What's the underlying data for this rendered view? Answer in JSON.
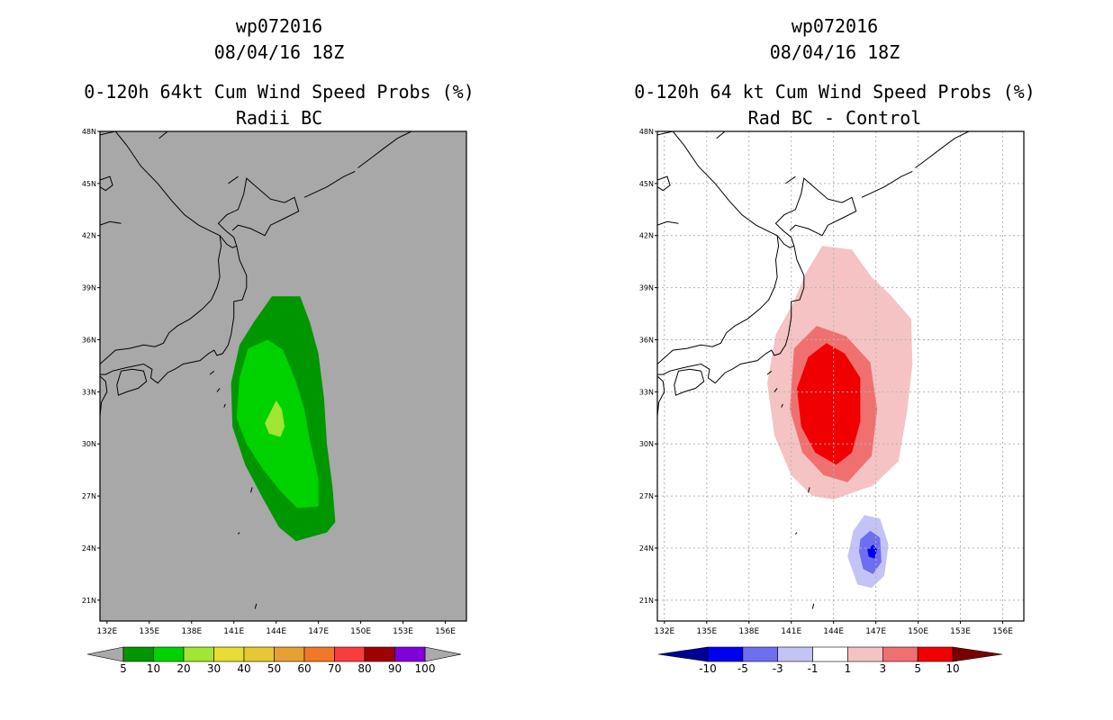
{
  "chart_data": [
    {
      "type": "map-contour",
      "storm_id": "wp072016",
      "date": "08/04/16 18Z",
      "title": "0-120h 64kt Cum Wind Speed Probs (%)",
      "subtitle": "Radii BC",
      "background_color": "#a8a8a8",
      "lat_ticks": [
        "48N",
        "45N",
        "42N",
        "39N",
        "36N",
        "33N",
        "30N",
        "27N",
        "24N",
        "21N"
      ],
      "lat_values": [
        48,
        45,
        42,
        39,
        36,
        33,
        30,
        27,
        24,
        21
      ],
      "lon_ticks": [
        "132E",
        "135E",
        "138E",
        "141E",
        "144E",
        "147E",
        "150E",
        "153E",
        "156E"
      ],
      "lon_values": [
        132,
        135,
        138,
        141,
        144,
        147,
        150,
        153,
        156
      ],
      "xlim": [
        131.5,
        157.5
      ],
      "ylim": [
        19.8,
        48
      ],
      "colorbar": {
        "labels": [
          "5",
          "10",
          "20",
          "30",
          "40",
          "50",
          "60",
          "70",
          "80",
          "90",
          "100"
        ],
        "colors": [
          "#009600",
          "#00d200",
          "#a0e632",
          "#e6dc32",
          "#e6c832",
          "#e6a032",
          "#f07828",
          "#fa3c3c",
          "#a00000",
          "#8200dc"
        ],
        "end_low": "#aaaaaa",
        "end_high": "#aaaaaa"
      },
      "contours": [
        {
          "level": 5,
          "color": "#009600",
          "points": [
            [
              142.4,
              37.0
            ],
            [
              143.7,
              38.5
            ],
            [
              145.7,
              38.5
            ],
            [
              146.4,
              37.0
            ],
            [
              147.0,
              35.2
            ],
            [
              147.4,
              32.6
            ],
            [
              147.6,
              30.0
            ],
            [
              148.0,
              27.5
            ],
            [
              148.2,
              25.5
            ],
            [
              147.6,
              24.9
            ],
            [
              145.4,
              24.4
            ],
            [
              144.2,
              25.2
            ],
            [
              143.1,
              26.8
            ],
            [
              141.8,
              28.8
            ],
            [
              140.9,
              31.0
            ],
            [
              140.8,
              33.5
            ],
            [
              141.4,
              35.7
            ]
          ]
        },
        {
          "level": 10,
          "color": "#00d200",
          "points": [
            [
              142.0,
              35.5
            ],
            [
              143.4,
              36.0
            ],
            [
              144.5,
              35.4
            ],
            [
              145.4,
              33.6
            ],
            [
              146.0,
              32.0
            ],
            [
              146.4,
              30.2
            ],
            [
              147.0,
              28.0
            ],
            [
              147.0,
              26.4
            ],
            [
              145.5,
              26.3
            ],
            [
              144.4,
              27.2
            ],
            [
              143.1,
              28.5
            ],
            [
              141.9,
              30.0
            ],
            [
              141.2,
              31.5
            ],
            [
              141.4,
              33.8
            ]
          ]
        },
        {
          "level": 20,
          "color": "#a0e632",
          "points": [
            [
              143.2,
              31.2
            ],
            [
              144.0,
              32.5
            ],
            [
              144.4,
              32.0
            ],
            [
              144.6,
              31.0
            ],
            [
              144.3,
              30.4
            ],
            [
              143.5,
              30.6
            ]
          ]
        }
      ]
    },
    {
      "type": "map-contour-difference",
      "storm_id": "wp072016",
      "date": "08/04/16 18Z",
      "title": "0-120h 64 kt Cum Wind Speed Probs (%)",
      "subtitle": "Rad BC - Control",
      "background_color": "#ffffff",
      "grid": true,
      "lat_ticks": [
        "48N",
        "45N",
        "42N",
        "39N",
        "36N",
        "33N",
        "30N",
        "27N",
        "24N",
        "21N"
      ],
      "lat_values": [
        48,
        45,
        42,
        39,
        36,
        33,
        30,
        27,
        24,
        21
      ],
      "lon_ticks": [
        "132E",
        "135E",
        "138E",
        "141E",
        "144E",
        "147E",
        "150E",
        "153E",
        "156E"
      ],
      "lon_values": [
        132,
        135,
        138,
        141,
        144,
        147,
        150,
        153,
        156
      ],
      "xlim": [
        131.5,
        157.5
      ],
      "ylim": [
        19.8,
        48
      ],
      "colorbar": {
        "labels": [
          "-10",
          "-5",
          "-3",
          "-1",
          "1",
          "3",
          "5",
          "10"
        ],
        "colors": [
          "#0000f0",
          "#6e6ef0",
          "#c3c3f5",
          "#ffffff",
          "#f5c3c3",
          "#f07070",
          "#f00000"
        ],
        "end_low": "#000096",
        "end_high": "#780000"
      },
      "contours": [
        {
          "level": 1,
          "color": "#f5c3c3",
          "points": [
            [
              142.0,
              39.8
            ],
            [
              143.2,
              41.4
            ],
            [
              145.3,
              41.2
            ],
            [
              146.7,
              39.6
            ],
            [
              148.0,
              38.6
            ],
            [
              149.5,
              37.2
            ],
            [
              149.6,
              34.6
            ],
            [
              149.2,
              31.8
            ],
            [
              148.6,
              29.0
            ],
            [
              146.8,
              27.6
            ],
            [
              144.0,
              26.8
            ],
            [
              142.5,
              27.0
            ],
            [
              141.0,
              28.2
            ],
            [
              139.8,
              30.5
            ],
            [
              139.3,
              33.5
            ],
            [
              139.9,
              36.3
            ],
            [
              141.2,
              38.2
            ]
          ]
        },
        {
          "level": 3,
          "color": "#f07070",
          "points": [
            [
              141.2,
              35.5
            ],
            [
              142.8,
              36.8
            ],
            [
              144.9,
              36.2
            ],
            [
              146.6,
              34.7
            ],
            [
              147.1,
              32.0
            ],
            [
              146.7,
              29.3
            ],
            [
              145.0,
              27.8
            ],
            [
              143.3,
              28.2
            ],
            [
              141.8,
              29.5
            ],
            [
              140.9,
              32.0
            ]
          ]
        },
        {
          "level": 5,
          "color": "#f00000",
          "points": [
            [
              142.2,
              35.0
            ],
            [
              143.5,
              35.8
            ],
            [
              144.8,
              35.2
            ],
            [
              145.9,
              33.8
            ],
            [
              145.9,
              31.3
            ],
            [
              145.3,
              29.5
            ],
            [
              144.2,
              28.8
            ],
            [
              142.7,
              29.5
            ],
            [
              141.7,
              31.0
            ],
            [
              141.4,
              33.2
            ]
          ]
        },
        {
          "level": -1,
          "color": "#c3c3f5",
          "points": [
            [
              145.4,
              25.0
            ],
            [
              146.2,
              25.9
            ],
            [
              147.3,
              25.7
            ],
            [
              147.9,
              24.2
            ],
            [
              147.6,
              22.4
            ],
            [
              146.7,
              21.7
            ],
            [
              145.7,
              21.9
            ],
            [
              145.0,
              23.5
            ]
          ]
        },
        {
          "level": -3,
          "color": "#6e6ef0",
          "points": [
            [
              145.9,
              24.5
            ],
            [
              146.6,
              25.0
            ],
            [
              147.3,
              24.6
            ],
            [
              147.4,
              23.2
            ],
            [
              146.8,
              22.5
            ],
            [
              146.1,
              22.8
            ],
            [
              145.8,
              23.8
            ]
          ]
        },
        {
          "level": -5,
          "color": "#0000f0",
          "points": [
            [
              146.4,
              23.9
            ],
            [
              146.8,
              24.2
            ],
            [
              147.1,
              23.9
            ],
            [
              146.9,
              23.4
            ],
            [
              146.5,
              23.5
            ]
          ]
        }
      ]
    }
  ]
}
